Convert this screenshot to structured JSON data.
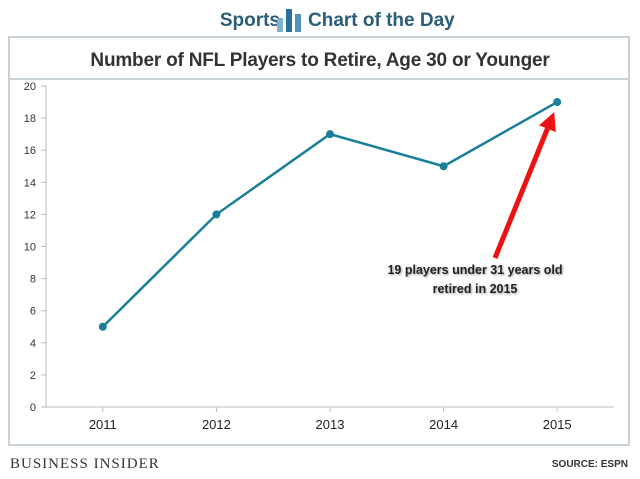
{
  "header": {
    "section": "Sports",
    "feature": "Chart of the Day"
  },
  "footer": {
    "brand": "BUSINESS INSIDER",
    "source": "SOURCE: ESPN"
  },
  "colors": {
    "line": "#1a7f99",
    "arrow": "#ee1111",
    "accent": "#2a5d78"
  },
  "chart_data": {
    "type": "line",
    "title": "Number of NFL Players to Retire, Age 30 or Younger",
    "xlabel": "",
    "ylabel": "",
    "categories": [
      "2011",
      "2012",
      "2013",
      "2014",
      "2015"
    ],
    "series": [
      {
        "values": [
          5,
          12,
          17,
          15,
          19
        ]
      }
    ],
    "ylim": [
      0,
      20
    ],
    "yticks": [
      0,
      2,
      4,
      6,
      8,
      10,
      12,
      14,
      16,
      18,
      20
    ],
    "grid": false,
    "annotation": {
      "lines": [
        "19 players under 31 years old",
        "retired in 2015"
      ],
      "target": {
        "x": "2015",
        "y": 19
      }
    }
  }
}
